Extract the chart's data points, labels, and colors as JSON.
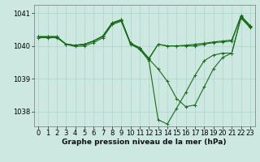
{
  "background_color": "#cce8e0",
  "grid_color": "#aad4cc",
  "line_color": "#1a6b1a",
  "title": "Graphe pression niveau de la mer (hPa)",
  "xlim": [
    -0.5,
    23.5
  ],
  "ylim": [
    1037.55,
    1041.25
  ],
  "yticks": [
    1038,
    1039,
    1040,
    1041
  ],
  "ytick_labels": [
    "1038",
    "1039",
    "1040",
    "1041"
  ],
  "xticks": [
    0,
    1,
    2,
    3,
    4,
    5,
    6,
    7,
    8,
    9,
    10,
    11,
    12,
    13,
    14,
    15,
    16,
    17,
    18,
    19,
    20,
    21,
    22,
    23
  ],
  "series": [
    [
      1040.25,
      1040.25,
      1040.25,
      1040.05,
      1039.98,
      1040.0,
      1040.1,
      1040.25,
      1040.65,
      1040.75,
      1040.05,
      1039.9,
      1039.55,
      1037.75,
      1037.62,
      1038.1,
      1038.58,
      1039.1,
      1039.55,
      1039.72,
      1039.78,
      1039.78,
      1040.85,
      1040.55
    ],
    [
      1040.28,
      1040.28,
      1040.28,
      1040.05,
      1040.02,
      1040.05,
      1040.15,
      1040.3,
      1040.68,
      1040.78,
      1040.08,
      1039.92,
      1039.6,
      1039.3,
      1038.92,
      1038.4,
      1038.15,
      1038.2,
      1038.75,
      1039.3,
      1039.65,
      1039.78,
      1040.88,
      1040.58
    ],
    [
      1040.28,
      1040.28,
      1040.28,
      1040.05,
      1040.02,
      1040.05,
      1040.15,
      1040.3,
      1040.7,
      1040.8,
      1040.08,
      1039.92,
      1039.6,
      1040.05,
      1040.0,
      1040.0,
      1040.0,
      1040.0,
      1040.05,
      1040.1,
      1040.12,
      1040.15,
      1040.9,
      1040.6
    ],
    [
      1040.28,
      1040.28,
      1040.28,
      1040.05,
      1040.02,
      1040.05,
      1040.15,
      1040.3,
      1040.7,
      1040.8,
      1040.08,
      1039.95,
      1039.62,
      1040.05,
      1040.0,
      1040.0,
      1040.02,
      1040.05,
      1040.08,
      1040.12,
      1040.15,
      1040.18,
      1040.92,
      1040.62
    ]
  ],
  "title_fontsize": 6.5,
  "tick_fontsize": 6,
  "linewidth": 0.8,
  "markersize": 2.5
}
